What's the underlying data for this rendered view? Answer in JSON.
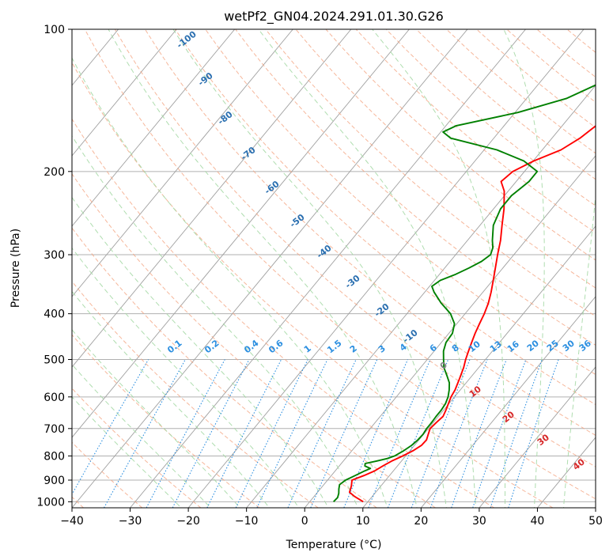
{
  "chart_data": {
    "type": "line",
    "title": "wetPf2_GN04.2024.291.01.30.G26",
    "xlabel": "Temperature (°C)",
    "ylabel": "Pressure (hPa)",
    "xlim": [
      -40,
      50
    ],
    "ylim": [
      1030,
      100
    ],
    "y_scale": "log",
    "x_ticks": [
      -40,
      -30,
      -20,
      -10,
      0,
      10,
      20,
      30,
      40,
      50
    ],
    "x_tick_labels": [
      "−40",
      "−30",
      "−20",
      "−10",
      "0",
      "10",
      "20",
      "30",
      "40",
      "50"
    ],
    "y_ticks": [
      100,
      200,
      300,
      400,
      500,
      600,
      700,
      800,
      900,
      1000
    ],
    "y_tick_labels": [
      "100",
      "200",
      "300",
      "400",
      "500",
      "600",
      "700",
      "800",
      "900",
      "1000"
    ],
    "grid": true,
    "colors": {
      "temperature": "#ff0000",
      "dewpoint": "#008000",
      "isotherm": "#a0a0a0",
      "dry_adiabat": "#f4a582",
      "moist_adiabat": "#a6d9a6",
      "mixing_ratio": "#2c8fe0",
      "dry_label": "#2a6fb0",
      "moist_label": "#d62728",
      "moist_zero_label": "#808080"
    },
    "series": [
      {
        "key": "temperature",
        "points": [
          [
            1000,
            9.2
          ],
          [
            975,
            7.0
          ],
          [
            955,
            5.5
          ],
          [
            925,
            4.9
          ],
          [
            900,
            4.2
          ],
          [
            880,
            5.6
          ],
          [
            860,
            6.8
          ],
          [
            840,
            7.5
          ],
          [
            820,
            8.3
          ],
          [
            800,
            9.5
          ],
          [
            780,
            10.5
          ],
          [
            760,
            11.2
          ],
          [
            740,
            11.3
          ],
          [
            720,
            10.8
          ],
          [
            700,
            10.3
          ],
          [
            680,
            10.5
          ],
          [
            660,
            10.8
          ],
          [
            640,
            10.4
          ],
          [
            620,
            9.9
          ],
          [
            600,
            9.4
          ],
          [
            580,
            9.1
          ],
          [
            550,
            8.3
          ],
          [
            520,
            7.4
          ],
          [
            500,
            6.6
          ],
          [
            480,
            5.9
          ],
          [
            460,
            5.2
          ],
          [
            440,
            4.5
          ],
          [
            420,
            3.9
          ],
          [
            400,
            3.3
          ],
          [
            380,
            2.5
          ],
          [
            360,
            1.4
          ],
          [
            340,
            0.1
          ],
          [
            320,
            -1.3
          ],
          [
            300,
            -2.8
          ],
          [
            280,
            -4.3
          ],
          [
            260,
            -6.2
          ],
          [
            240,
            -8.2
          ],
          [
            220,
            -10.7
          ],
          [
            210,
            -12.6
          ],
          [
            200,
            -12.0
          ],
          [
            190,
            -9.9
          ],
          [
            180,
            -6.8
          ],
          [
            170,
            -5.2
          ],
          [
            160,
            -4.2
          ],
          [
            150,
            -3.3
          ],
          [
            140,
            -2.4
          ],
          [
            130,
            -1.2
          ],
          [
            120,
            0.2
          ],
          [
            115,
            1.2
          ],
          [
            110,
            2.4
          ],
          [
            105,
            3.6
          ],
          [
            100,
            4.8
          ]
        ]
      },
      {
        "key": "dewpoint",
        "points": [
          [
            1000,
            4.1
          ],
          [
            980,
            4.2
          ],
          [
            960,
            3.8
          ],
          [
            940,
            3.2
          ],
          [
            920,
            2.7
          ],
          [
            900,
            3.1
          ],
          [
            880,
            4.1
          ],
          [
            860,
            5.1
          ],
          [
            850,
            5.7
          ],
          [
            840,
            4.4
          ],
          [
            830,
            4.1
          ],
          [
            820,
            5.7
          ],
          [
            810,
            7.2
          ],
          [
            800,
            8.1
          ],
          [
            780,
            8.9
          ],
          [
            760,
            9.5
          ],
          [
            740,
            9.8
          ],
          [
            720,
            9.9
          ],
          [
            700,
            9.7
          ],
          [
            680,
            9.7
          ],
          [
            660,
            9.6
          ],
          [
            640,
            9.6
          ],
          [
            620,
            9.4
          ],
          [
            600,
            8.9
          ],
          [
            580,
            8.1
          ],
          [
            560,
            7.1
          ],
          [
            540,
            5.6
          ],
          [
            520,
            4.0
          ],
          [
            500,
            2.8
          ],
          [
            480,
            1.6
          ],
          [
            460,
            0.8
          ],
          [
            440,
            0.6
          ],
          [
            420,
            -0.4
          ],
          [
            400,
            -2.5
          ],
          [
            380,
            -5.6
          ],
          [
            360,
            -8.4
          ],
          [
            350,
            -9.6
          ],
          [
            340,
            -9.0
          ],
          [
            330,
            -7.2
          ],
          [
            320,
            -5.8
          ],
          [
            310,
            -4.6
          ],
          [
            300,
            -4.0
          ],
          [
            290,
            -4.6
          ],
          [
            280,
            -5.7
          ],
          [
            260,
            -7.7
          ],
          [
            240,
            -8.8
          ],
          [
            225,
            -8.8
          ],
          [
            210,
            -7.8
          ],
          [
            200,
            -7.8
          ],
          [
            190,
            -11.6
          ],
          [
            180,
            -17.8
          ],
          [
            170,
            -27.4
          ],
          [
            165,
            -29.6
          ],
          [
            160,
            -28.2
          ],
          [
            150,
            -19.5
          ],
          [
            140,
            -13.1
          ],
          [
            130,
            -9.6
          ],
          [
            125,
            -8.9
          ],
          [
            120,
            -9.2
          ],
          [
            115,
            -9.0
          ],
          [
            110,
            -7.9
          ],
          [
            105,
            -5.6
          ],
          [
            100,
            -2.8
          ]
        ]
      }
    ],
    "dry_adiabat_labels": [
      "-100",
      "-90",
      "-80",
      "-70",
      "-60",
      "-50",
      "-40",
      "-30",
      "-20",
      "-10"
    ],
    "moist_adiabat_labels": [
      "0",
      "10",
      "20",
      "30",
      "40"
    ],
    "mixing_ratio_labels": [
      "0.1",
      "0.2",
      "0.4",
      "0.6",
      "1",
      "1.5",
      "2",
      "3",
      "4",
      "6",
      "8",
      "10",
      "13",
      "16",
      "20",
      "25",
      "30",
      "36"
    ],
    "mixing_ratios_gkg": [
      0.1,
      0.2,
      0.4,
      0.6,
      1,
      1.5,
      2,
      3,
      4,
      6,
      8,
      10,
      13,
      16,
      20,
      25,
      30,
      36
    ],
    "dry_adiabats_C": [
      -100,
      -90,
      -80,
      -70,
      -60,
      -50,
      -40,
      -30,
      -20,
      -10,
      0,
      10,
      20,
      30,
      40,
      50,
      60,
      70,
      80,
      90,
      100,
      110,
      120,
      130,
      140,
      150,
      160,
      170,
      180,
      190,
      200,
      210,
      220
    ],
    "moist_adiabats_C": [
      -20,
      -15,
      -10,
      -5,
      0,
      5,
      10,
      15,
      20,
      25,
      30,
      35,
      40,
      45
    ]
  }
}
